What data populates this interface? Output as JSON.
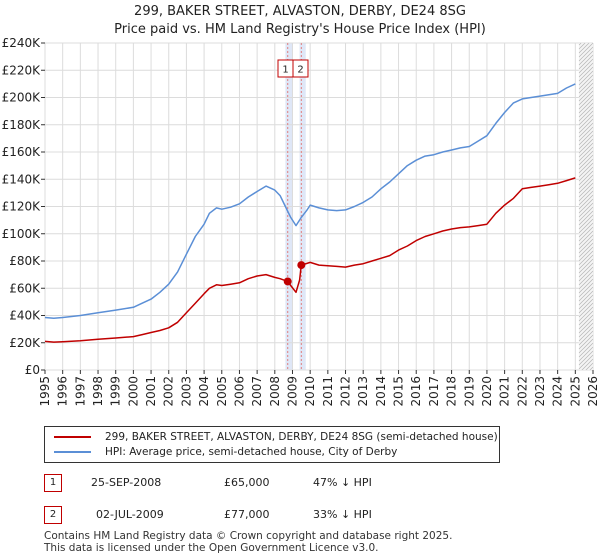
{
  "header": {
    "title_line1": "299, BAKER STREET, ALVASTON, DERBY, DE24 8SG",
    "title_line2": "Price paid vs. HM Land Registry's House Price Index (HPI)"
  },
  "chart_data": {
    "type": "line",
    "title": "299, BAKER STREET, ALVASTON, DERBY, DE24 8SG",
    "subtitle": "Price paid vs. HM Land Registry's House Price Index (HPI)",
    "xlabel": "",
    "ylabel": "",
    "xlim": [
      1995,
      2026
    ],
    "ylim": [
      0,
      240000
    ],
    "grid": true,
    "y_ticks": [
      0,
      20000,
      40000,
      60000,
      80000,
      100000,
      120000,
      140000,
      160000,
      180000,
      200000,
      220000,
      240000
    ],
    "y_tick_labels": [
      "£0",
      "£20K",
      "£40K",
      "£60K",
      "£80K",
      "£100K",
      "£120K",
      "£140K",
      "£160K",
      "£180K",
      "£200K",
      "£220K",
      "£240K"
    ],
    "x_ticks": [
      1995,
      1996,
      1997,
      1998,
      1999,
      2000,
      2001,
      2002,
      2003,
      2004,
      2005,
      2006,
      2007,
      2008,
      2009,
      2010,
      2011,
      2012,
      2013,
      2014,
      2015,
      2016,
      2017,
      2018,
      2019,
      2020,
      2021,
      2022,
      2023,
      2024,
      2025,
      2026
    ],
    "x_tick_labels": [
      "1995",
      "1996",
      "1997",
      "1998",
      "1999",
      "2000",
      "2001",
      "2002",
      "2003",
      "2004",
      "2005",
      "2006",
      "2007",
      "2008",
      "2009",
      "2010",
      "2011",
      "2012",
      "2013",
      "2014",
      "2015",
      "2016",
      "2017",
      "2018",
      "2019",
      "2020",
      "2021",
      "2022",
      "2023",
      "2024",
      "2025",
      "2026"
    ],
    "transaction_bands": [
      [
        2008.6,
        2009.0
      ],
      [
        2009.4,
        2009.75
      ]
    ],
    "transaction_dates": [
      2008.73,
      2009.5
    ],
    "projection_start": 2025.2,
    "series": [
      {
        "name": "299, BAKER STREET, ALVASTON, DERBY, DE24 8SG (semi-detached house)",
        "color": "#c00000",
        "x": [
          1995,
          1995.5,
          1996,
          1997,
          1998,
          1999,
          2000,
          2000.5,
          2001,
          2001.5,
          2002,
          2002.5,
          2003,
          2003.5,
          2004,
          2004.3,
          2004.7,
          2005,
          2005.5,
          2006,
          2006.5,
          2007,
          2007.5,
          2008,
          2008.3,
          2008.73,
          2008.9,
          2009.2,
          2009.4,
          2009.5,
          2010,
          2010.5,
          2011,
          2011.5,
          2012,
          2012.5,
          2013,
          2013.5,
          2014,
          2014.5,
          2015,
          2015.5,
          2016,
          2016.5,
          2017,
          2017.5,
          2018,
          2018.5,
          2019,
          2019.5,
          2020,
          2020.5,
          2021,
          2021.5,
          2022,
          2022.5,
          2023,
          2023.5,
          2024,
          2024.5,
          2025.0
        ],
        "values": [
          21000,
          20500,
          20800,
          21500,
          22500,
          23500,
          24500,
          26000,
          27500,
          29000,
          31000,
          35000,
          42000,
          49000,
          56000,
          60000,
          62500,
          62000,
          63000,
          64000,
          67000,
          69000,
          70000,
          68000,
          67000,
          65000,
          62000,
          57000,
          66000,
          77000,
          79000,
          77000,
          76500,
          76000,
          75500,
          77000,
          78000,
          80000,
          82000,
          84000,
          88000,
          91000,
          95000,
          98000,
          100000,
          102000,
          103500,
          104500,
          105000,
          106000,
          107000,
          115000,
          121000,
          126000,
          133000,
          134000,
          135000,
          136000,
          137000,
          139000,
          141000
        ]
      },
      {
        "name": "HPI: Average price, semi-detached house, City of Derby",
        "color": "#5b8fd6",
        "x": [
          1995,
          1995.5,
          1996,
          1997,
          1998,
          1999,
          2000,
          2000.5,
          2001,
          2001.5,
          2002,
          2002.5,
          2003,
          2003.5,
          2004,
          2004.3,
          2004.7,
          2005,
          2005.5,
          2006,
          2006.5,
          2007,
          2007.5,
          2008,
          2008.3,
          2008.6,
          2008.9,
          2009.2,
          2009.5,
          2009.8,
          2010,
          2010.5,
          2011,
          2011.5,
          2012,
          2012.5,
          2013,
          2013.5,
          2014,
          2014.5,
          2015,
          2015.5,
          2016,
          2016.5,
          2017,
          2017.5,
          2018,
          2018.5,
          2019,
          2019.5,
          2020,
          2020.5,
          2021,
          2021.5,
          2022,
          2022.5,
          2023,
          2023.5,
          2024,
          2024.5,
          2025.0
        ],
        "values": [
          38500,
          38000,
          38500,
          40000,
          42000,
          44000,
          46000,
          49000,
          52000,
          57000,
          63000,
          72000,
          85000,
          98000,
          107000,
          115000,
          119000,
          118000,
          119500,
          122000,
          127000,
          131000,
          135000,
          132000,
          128000,
          120000,
          112000,
          106000,
          112000,
          117000,
          121000,
          119000,
          117500,
          117000,
          117500,
          120000,
          123000,
          127000,
          133000,
          138000,
          144000,
          150000,
          154000,
          157000,
          158000,
          160000,
          161500,
          163000,
          164000,
          168000,
          172000,
          181000,
          189000,
          196000,
          199000,
          200000,
          201000,
          202000,
          203000,
          207000,
          210000
        ]
      }
    ],
    "sale_points": [
      {
        "label": "1",
        "x": 2008.73,
        "value": 65000
      },
      {
        "label": "2",
        "x": 2009.5,
        "value": 77000
      }
    ]
  },
  "legend": {
    "entries": [
      {
        "label": "299, BAKER STREET, ALVASTON, DERBY, DE24 8SG (semi-detached house)",
        "color": "#c00000"
      },
      {
        "label": "HPI: Average price, semi-detached house, City of Derby",
        "color": "#5b8fd6"
      }
    ]
  },
  "transactions": [
    {
      "num": "1",
      "date": "25-SEP-2008",
      "price": "£65,000",
      "hpi": "47% ↓ HPI"
    },
    {
      "num": "2",
      "date": "02-JUL-2009",
      "price": "£77,000",
      "hpi": "33% ↓ HPI"
    }
  ],
  "footer": {
    "line1": "Contains HM Land Registry data © Crown copyright and database right 2025.",
    "line2": "This data is licensed under the Open Government Licence v3.0."
  }
}
